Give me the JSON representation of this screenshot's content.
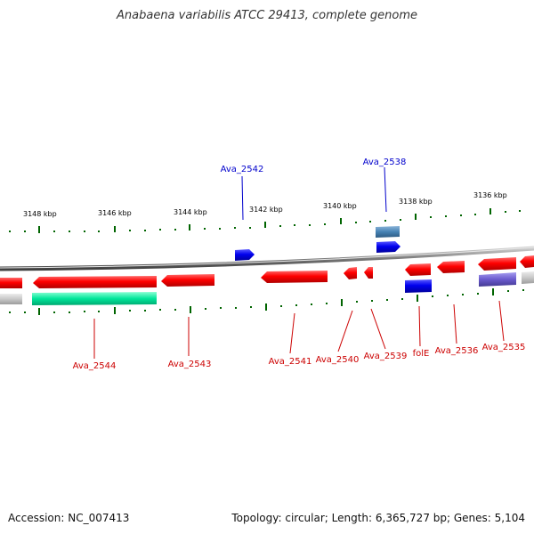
{
  "title": "Anabaena variabilis ATCC 29413, complete genome",
  "footer": {
    "accession": "Accession: NC_007413",
    "summary": "Topology: circular; Length: 6,365,727 bp; Genes: 5,104"
  },
  "ruler_labels": [
    "3148 kbp",
    "3146 kbp",
    "3144 kbp",
    "3142 kbp",
    "3140 kbp",
    "3138 kbp",
    "3136 kbp"
  ],
  "gene_labels": {
    "top": [
      "Ava_2542",
      "Ava_2538"
    ],
    "bottom": [
      "Ava_2544",
      "Ava_2543",
      "Ava_2541",
      "Ava_2540",
      "Ava_2539",
      "folE",
      "Ava_2536",
      "Ava_2535"
    ]
  },
  "colors": {
    "red_gene": "#ff0000",
    "blue_gene": "#0000ee",
    "steel_gene": "#4682b4",
    "purple_gene": "#6a5acd",
    "green_gene": "#00e69a",
    "gray_gene": "#c8c8c8",
    "tick": "#006400",
    "backbone": "#808080",
    "top_label": "#0000cc",
    "bottom_label": "#cc0000"
  }
}
